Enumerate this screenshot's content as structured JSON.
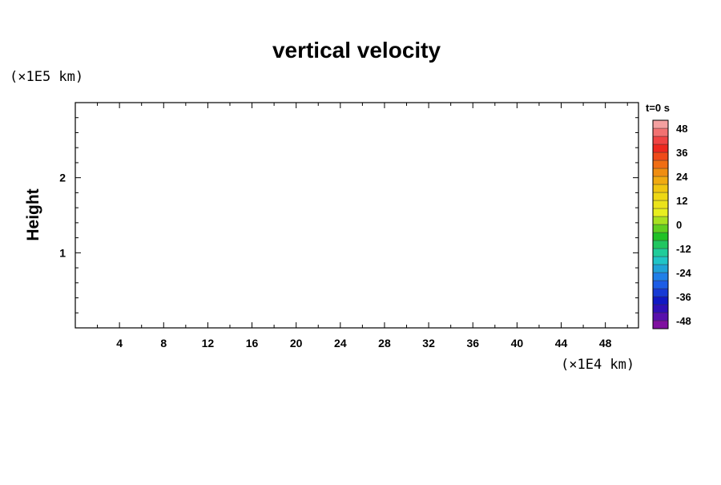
{
  "chart_data": {
    "type": "heatmap",
    "title": "vertical velocity",
    "ylabel": "Height",
    "xlabel": "",
    "x_unit": "(×1E4 km)",
    "y_unit": "(×1E5 km)",
    "xlim": [
      0,
      51
    ],
    "ylim": [
      0,
      3
    ],
    "x_ticks": [
      4,
      8,
      12,
      16,
      20,
      24,
      28,
      32,
      36,
      40,
      44,
      48
    ],
    "y_ticks": [
      1,
      2
    ],
    "x_minor_step": 2,
    "y_minor_step": 0.2,
    "values": [],
    "colorbar": {
      "title": "t=0 s",
      "range": [
        -52,
        52
      ],
      "labels": [
        48,
        36,
        24,
        12,
        0,
        -12,
        -24,
        -36,
        -48
      ],
      "bands": 26,
      "colors": [
        "#f4a0a0",
        "#ee2020",
        "#f08010",
        "#f0d010",
        "#e8f020",
        "#20c020",
        "#20d0c0",
        "#2070f0",
        "#1010c0",
        "#8010a0"
      ]
    }
  }
}
